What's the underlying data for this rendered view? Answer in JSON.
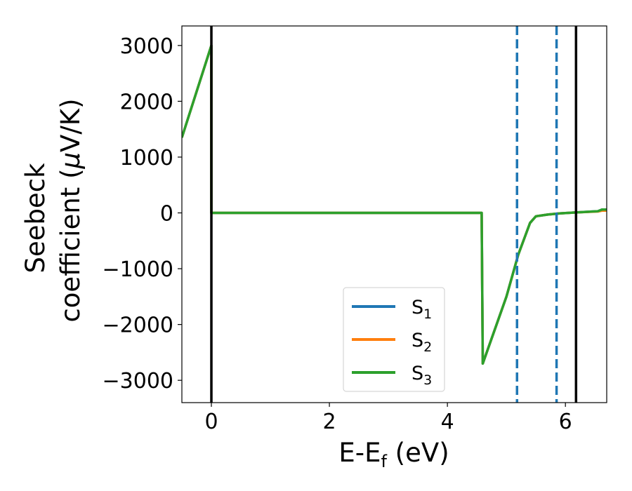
{
  "chart_data": {
    "type": "line",
    "xlabel": {
      "main": "E-E",
      "sub": "f",
      "unit": " (eV)"
    },
    "ylabel": {
      "line1": "Seebeck",
      "line2": "coefficient  (",
      "mu": "μ",
      "line2_end": "V/K)"
    },
    "xlim": [
      -0.5,
      6.7
    ],
    "ylim": [
      -3400,
      3350
    ],
    "xticks": [
      0,
      2,
      4,
      6
    ],
    "xtick_labels": [
      "0",
      "2",
      "4",
      "6"
    ],
    "yticks": [
      3000,
      2000,
      1000,
      0,
      -1000,
      -2000,
      -3000
    ],
    "ytick_labels": [
      "3000",
      "2000",
      "1000",
      "0",
      "−1000",
      "−2000",
      "−3000"
    ],
    "grid": false,
    "legend_position": "bottom-center",
    "x": [
      -0.5,
      0.0,
      0.0,
      4.58,
      4.6,
      5.0,
      5.2,
      5.4,
      5.5,
      5.7,
      5.9,
      6.2,
      6.55,
      6.62,
      6.7
    ],
    "series": [
      {
        "name": "S",
        "sub": "1",
        "color": "#1f77b4",
        "values": [
          1350,
          3000,
          0,
          0,
          -2700,
          -1500,
          -750,
          -180,
          -60,
          -30,
          -10,
          10,
          30,
          60,
          60
        ]
      },
      {
        "name": "S",
        "sub": "2",
        "color": "#ff7f0e",
        "values": [
          1350,
          3000,
          0,
          0,
          -2700,
          -1500,
          -750,
          -180,
          -60,
          -30,
          -10,
          10,
          25,
          40,
          40
        ]
      },
      {
        "name": "S",
        "sub": "3",
        "color": "#2ca02c",
        "values": [
          1350,
          3000,
          0,
          0,
          -2700,
          -1500,
          -750,
          -180,
          -60,
          -30,
          -10,
          10,
          30,
          60,
          60
        ]
      }
    ],
    "vlines_solid": [
      0.0,
      6.18
    ],
    "vlines_solid_color": "#000000",
    "vlines_dashed": [
      5.18,
      5.85
    ],
    "vlines_dashed_color": "#1f77b4"
  }
}
